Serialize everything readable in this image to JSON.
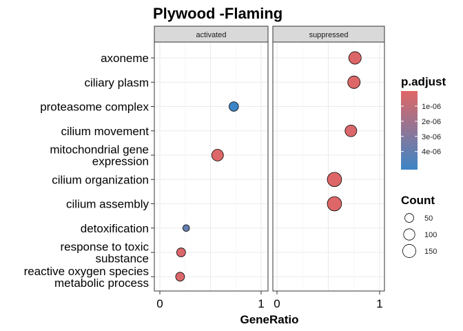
{
  "chart_data": {
    "type": "scatter",
    "title": "Plywood -Flaming",
    "xlabel": "GeneRatio",
    "xlim": [
      0,
      1
    ],
    "x_ticks": [
      "0",
      "1"
    ],
    "grid": true,
    "facets": [
      "activated",
      "suppressed"
    ],
    "categories": [
      "axoneme",
      "ciliary plasm",
      "proteasome complex",
      "cilium movement",
      "mitochondrial gene\nexpression",
      "cilium organization",
      "cilium assembly",
      "detoxification",
      "response to toxic\nsubstance",
      "reactive oxygen species\nmetabolic process"
    ],
    "points": [
      {
        "facet": "suppressed",
        "term": "axoneme",
        "x": 0.76,
        "count": 130,
        "p_adjust": 1e-07
      },
      {
        "facet": "suppressed",
        "term": "ciliary plasm",
        "x": 0.75,
        "count": 130,
        "p_adjust": 1e-07
      },
      {
        "facet": "activated",
        "term": "proteasome complex",
        "x": 0.73,
        "count": 60,
        "p_adjust": 5.2e-06
      },
      {
        "facet": "suppressed",
        "term": "cilium movement",
        "x": 0.72,
        "count": 110,
        "p_adjust": 2e-07
      },
      {
        "facet": "activated",
        "term": "mitochondrial gene\nexpression",
        "x": 0.57,
        "count": 110,
        "p_adjust": 1e-07
      },
      {
        "facet": "suppressed",
        "term": "cilium organization",
        "x": 0.56,
        "count": 185,
        "p_adjust": 1e-07
      },
      {
        "facet": "suppressed",
        "term": "cilium assembly",
        "x": 0.56,
        "count": 185,
        "p_adjust": 1e-07
      },
      {
        "facet": "activated",
        "term": "detoxification",
        "x": 0.26,
        "count": 20,
        "p_adjust": 4e-06
      },
      {
        "facet": "activated",
        "term": "response to toxic\nsubstance",
        "x": 0.21,
        "count": 50,
        "p_adjust": 2e-07
      },
      {
        "facet": "activated",
        "term": "reactive oxygen species\nmetabolic process",
        "x": 0.2,
        "count": 50,
        "p_adjust": 2e-07
      }
    ],
    "legend_color": {
      "title": "p.adjust",
      "range": [
        0,
        5.2e-06
      ],
      "ticks": [
        {
          "value": 1e-06,
          "label": "1e-06"
        },
        {
          "value": 2e-06,
          "label": "2e-06"
        },
        {
          "value": 3e-06,
          "label": "3e-06"
        },
        {
          "value": 4e-06,
          "label": "4e-06"
        }
      ],
      "low_color": "#e06666",
      "high_color": "#3d85c6"
    },
    "legend_size": {
      "title": "Count",
      "entries": [
        {
          "value": 50,
          "label": "50"
        },
        {
          "value": 100,
          "label": "100"
        },
        {
          "value": 150,
          "label": "150"
        }
      ]
    },
    "legend_position": "right"
  }
}
